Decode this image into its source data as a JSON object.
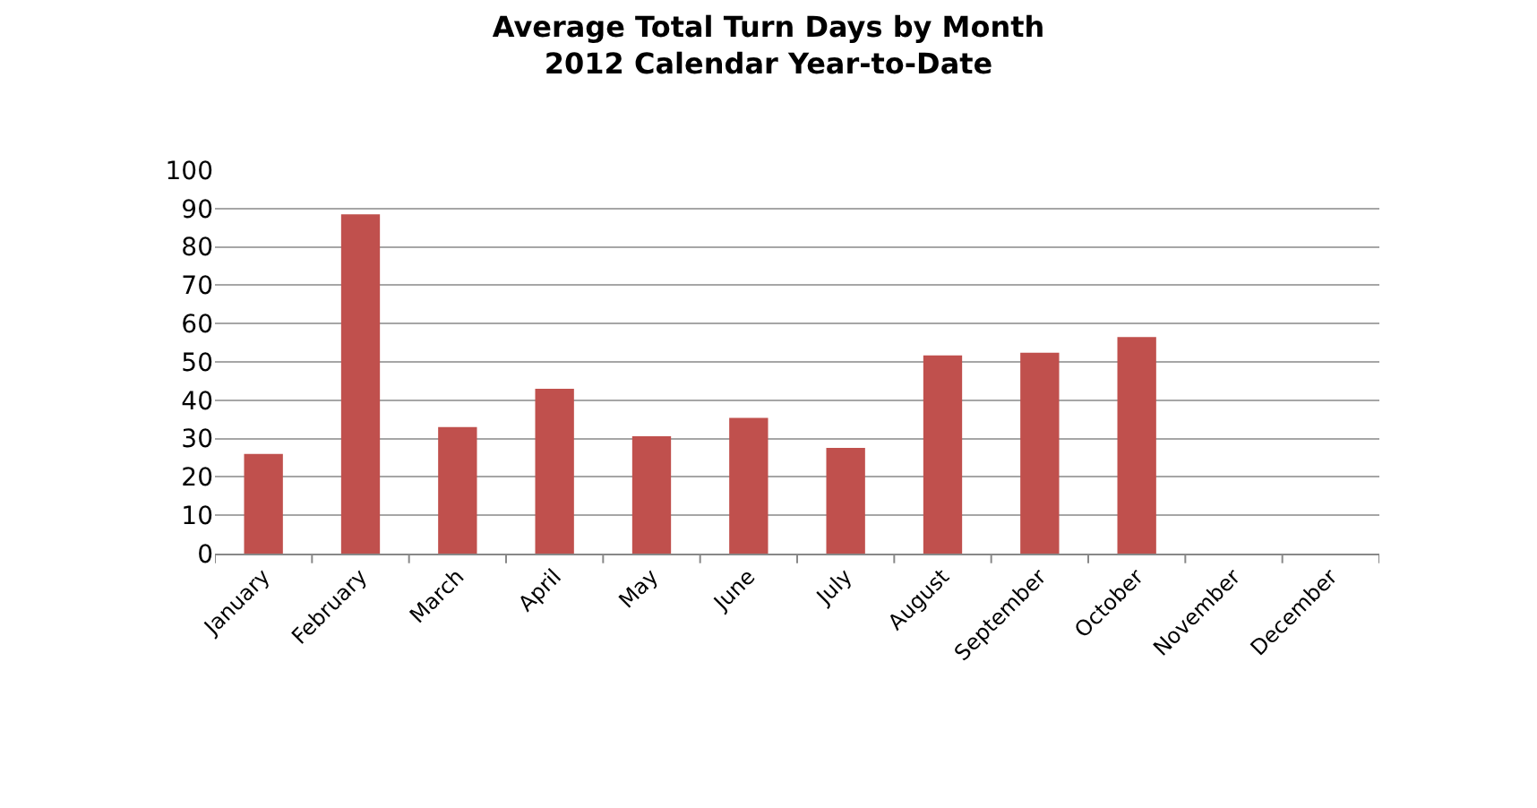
{
  "chart_data": {
    "type": "bar",
    "title": "Average Total Turn Days by Month\n2012 Calendar Year-to-Date",
    "categories": [
      "January",
      "February",
      "March",
      "April",
      "May",
      "June",
      "July",
      "August",
      "September",
      "October",
      "November",
      "December"
    ],
    "values": [
      26,
      88.5,
      33,
      43,
      30.6,
      35.4,
      27.6,
      51.7,
      52.4,
      56.5,
      null,
      null
    ],
    "color": "#c0504d",
    "ylim": [
      0,
      100
    ],
    "yticks": [
      0,
      10,
      20,
      30,
      40,
      50,
      60,
      70,
      80,
      90,
      100
    ],
    "grid": "y",
    "legend": false
  }
}
